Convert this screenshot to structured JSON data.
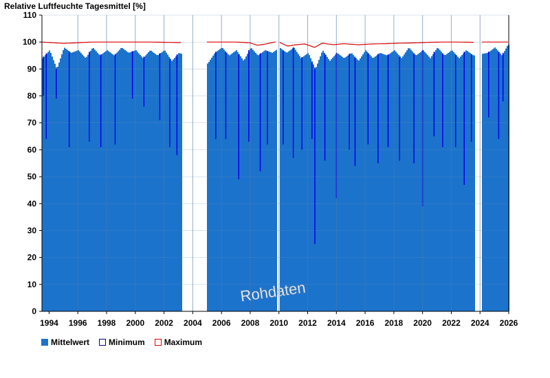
{
  "chart_data": {
    "type": "bar",
    "title": "Relative Luftfeuchte Tagesmittel [%]",
    "xlim": [
      1993.5,
      2026
    ],
    "ylim": [
      0,
      110
    ],
    "yticks": [
      0,
      10,
      20,
      30,
      40,
      50,
      60,
      70,
      80,
      90,
      100,
      110
    ],
    "xticks": [
      "1994",
      "1996",
      "1998",
      "2000",
      "2002",
      "2004",
      "2006",
      "2008",
      "2010",
      "2012",
      "2014",
      "2016",
      "2018",
      "2020",
      "2022",
      "2024",
      "2026"
    ],
    "watermark": "Rohdaten",
    "legend": {
      "position": "bottom-left",
      "entries": [
        "Mittelwert",
        "Minimum",
        "Maximum"
      ]
    },
    "colors": {
      "mittelwert": "#1c73cc",
      "minimum_border": "#000080",
      "maximum": "#dd0000",
      "gridline": "#4a78a8"
    },
    "data_gaps": [
      [
        2003.25,
        2004.95
      ],
      [
        2009.85,
        2009.97
      ],
      [
        2023.65,
        2024.1
      ]
    ],
    "series": [
      {
        "name": "Mittelwert",
        "x": [
          1993.5,
          1994.0,
          1994.5,
          1995.0,
          1995.5,
          1996.0,
          1996.5,
          1997.0,
          1997.5,
          1998.0,
          1998.5,
          1999.0,
          1999.5,
          2000.0,
          2000.5,
          2001.0,
          2001.5,
          2002.0,
          2002.5,
          2003.0,
          2005.0,
          2005.5,
          2006.0,
          2006.5,
          2007.0,
          2007.5,
          2008.0,
          2008.5,
          2009.0,
          2009.5,
          2010.0,
          2010.5,
          2011.0,
          2011.5,
          2012.0,
          2012.5,
          2013.0,
          2013.5,
          2014.0,
          2014.5,
          2015.0,
          2015.5,
          2016.0,
          2016.5,
          2017.0,
          2017.5,
          2018.0,
          2018.5,
          2019.0,
          2019.5,
          2020.0,
          2020.5,
          2021.0,
          2021.5,
          2022.0,
          2022.5,
          2023.0,
          2023.5,
          2024.5,
          2025.0,
          2025.5,
          2025.9
        ],
        "values": [
          94,
          97,
          90,
          98,
          96,
          97,
          94,
          98,
          95,
          97,
          95,
          98,
          96,
          97,
          94,
          97,
          95,
          97,
          93,
          96,
          92,
          96,
          98,
          95,
          97,
          93,
          98,
          95,
          97,
          96,
          98,
          96,
          98,
          94,
          96,
          90,
          97,
          93,
          96,
          94,
          96,
          93,
          97,
          94,
          96,
          95,
          97,
          94,
          98,
          95,
          97,
          94,
          98,
          95,
          97,
          94,
          97,
          95,
          96,
          98,
          95,
          99
        ]
      },
      {
        "name": "Minimum",
        "x": [
          1993.6,
          1993.8,
          1994.5,
          1995.4,
          1996.8,
          1997.6,
          1998.6,
          1999.8,
          2000.6,
          2001.7,
          2002.4,
          2002.9,
          2005.6,
          2006.3,
          2007.2,
          2007.9,
          2008.7,
          2009.2,
          2010.3,
          2011.0,
          2011.6,
          2012.3,
          2012.5,
          2013.2,
          2014.0,
          2014.9,
          2015.3,
          2016.2,
          2016.9,
          2017.6,
          2018.4,
          2019.4,
          2020.0,
          2020.8,
          2021.4,
          2022.3,
          2022.9,
          2023.4,
          2024.6,
          2025.3,
          2025.6
        ],
        "values": [
          80,
          64,
          79,
          61,
          63,
          61,
          62,
          79,
          76,
          71,
          61,
          58,
          64,
          64,
          49,
          63,
          52,
          62,
          62,
          57,
          60,
          64,
          25,
          56,
          42,
          60,
          54,
          62,
          55,
          61,
          56,
          55,
          39,
          65,
          61,
          61,
          47,
          63,
          72,
          64,
          78
        ]
      },
      {
        "name": "Maximum",
        "x": [
          1993.5,
          1995.0,
          1997.0,
          1999.0,
          2001.0,
          2003.0,
          2005.0,
          2006.0,
          2007.0,
          2008.0,
          2008.5,
          2009.0,
          2009.7,
          2010.0,
          2010.6,
          2011.2,
          2011.8,
          2012.5,
          2013.0,
          2013.8,
          2014.5,
          2015.5,
          2016.5,
          2017.5,
          2018.5,
          2019.5,
          2020.5,
          2021.5,
          2022.5,
          2023.5,
          2024.2,
          2025.0,
          2025.9
        ],
        "values": [
          100,
          99.5,
          100,
          100,
          100,
          99.8,
          100,
          100,
          100,
          99.7,
          98.8,
          99.2,
          100,
          100,
          98.5,
          99.0,
          99.3,
          98.0,
          99.6,
          99.0,
          99.4,
          99.0,
          99.3,
          99.4,
          99.6,
          99.7,
          99.9,
          100,
          100,
          99.9,
          100,
          100,
          100
        ]
      }
    ]
  }
}
